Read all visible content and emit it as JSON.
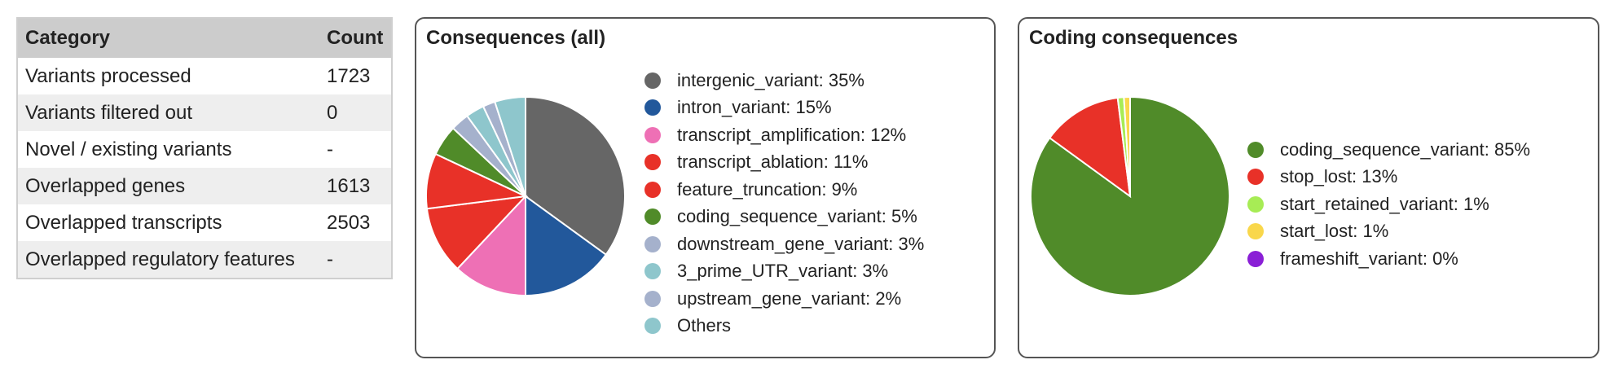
{
  "summary_table": {
    "headers": [
      "Category",
      "Count"
    ],
    "rows": [
      {
        "category": "Variants processed",
        "count": "1723"
      },
      {
        "category": "Variants filtered out",
        "count": "0"
      },
      {
        "category": "Novel / existing variants",
        "count": "-"
      },
      {
        "category": "Overlapped genes",
        "count": "1613"
      },
      {
        "category": "Overlapped transcripts",
        "count": "2503"
      },
      {
        "category": "Overlapped regulatory features",
        "count": "-"
      }
    ]
  },
  "chart_data": [
    {
      "type": "pie",
      "title": "Consequences (all)",
      "slices": [
        {
          "label": "intergenic_variant: 35%",
          "value": 35,
          "color": "#666666"
        },
        {
          "label": "intron_variant: 15%",
          "value": 15,
          "color": "#22589b"
        },
        {
          "label": "transcript_amplification: 12%",
          "value": 12,
          "color": "#ee70b5"
        },
        {
          "label": "transcript_ablation: 11%",
          "value": 11,
          "color": "#e83128"
        },
        {
          "label": "feature_truncation: 9%",
          "value": 9,
          "color": "#e83128"
        },
        {
          "label": "coding_sequence_variant: 5%",
          "value": 5,
          "color": "#508b29"
        },
        {
          "label": "downstream_gene_variant: 3%",
          "value": 3,
          "color": "#a5b1cc"
        },
        {
          "label": "3_prime_UTR_variant: 3%",
          "value": 3,
          "color": "#8ec6cc"
        },
        {
          "label": "upstream_gene_variant: 2%",
          "value": 2,
          "color": "#a5b1cc"
        },
        {
          "label": "Others",
          "value": 5,
          "color": "#8ec6cc"
        }
      ]
    },
    {
      "type": "pie",
      "title": "Coding consequences",
      "slices": [
        {
          "label": "coding_sequence_variant: 85%",
          "value": 85,
          "color": "#508b29"
        },
        {
          "label": "stop_lost: 13%",
          "value": 13,
          "color": "#e83128"
        },
        {
          "label": "start_retained_variant: 1%",
          "value": 1,
          "color": "#a7ec55"
        },
        {
          "label": "start_lost: 1%",
          "value": 1,
          "color": "#f9d74b"
        },
        {
          "label": "frameshift_variant: 0%",
          "value": 0,
          "color": "#8a1fd6"
        }
      ]
    }
  ]
}
